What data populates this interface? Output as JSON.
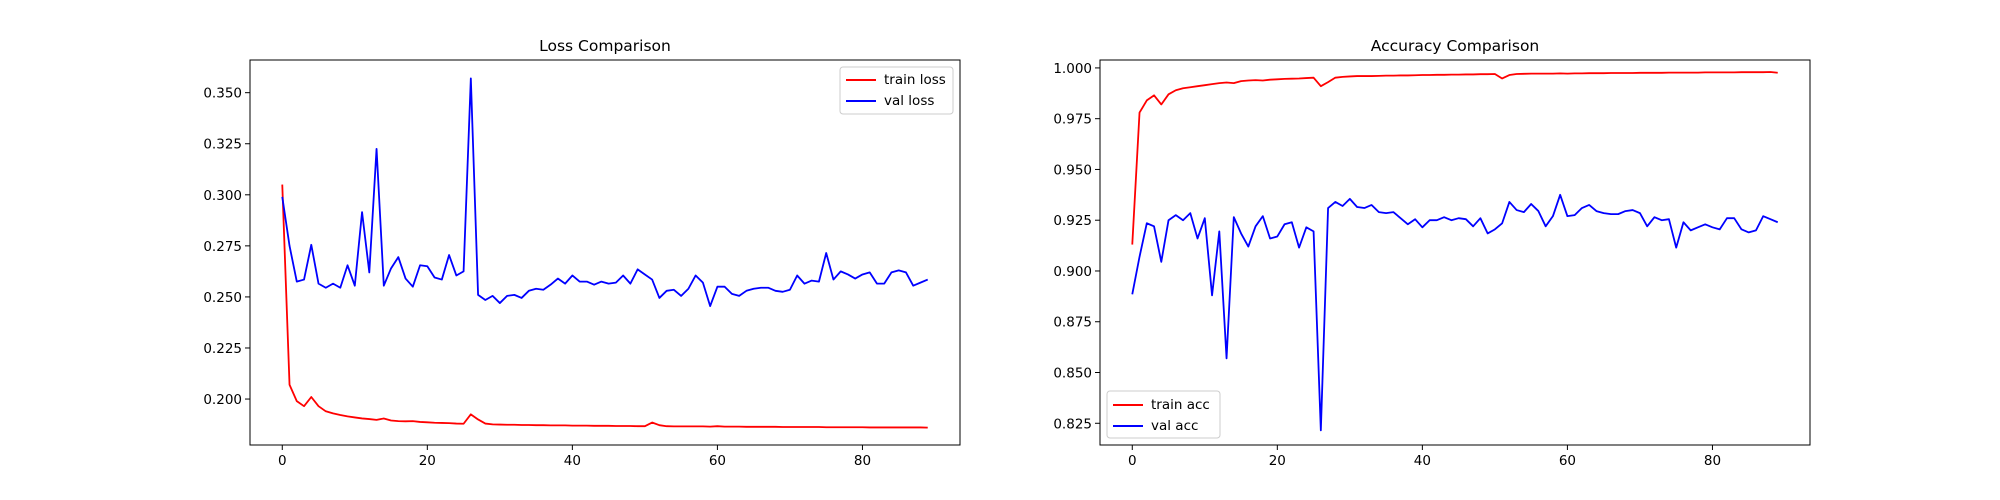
{
  "chart_data": [
    {
      "type": "line",
      "title": "Loss Comparison",
      "xlabel": "",
      "ylabel": "",
      "xlim": [
        -4.45,
        93.45
      ],
      "ylim": [
        0.1775,
        0.366
      ],
      "xticks": [
        0,
        20,
        40,
        60,
        80
      ],
      "yticks": [
        0.2,
        0.225,
        0.25,
        0.275,
        0.3,
        0.325,
        0.35
      ],
      "ytick_labels": [
        "0.200",
        "0.225",
        "0.250",
        "0.275",
        "0.300",
        "0.325",
        "0.350"
      ],
      "grid": false,
      "legend": "top-right",
      "series": [
        {
          "name": "train loss",
          "color": "#ff0000",
          "values": [
            0.305,
            0.207,
            0.199,
            0.1965,
            0.201,
            0.1965,
            0.194,
            0.193,
            0.1922,
            0.1915,
            0.191,
            0.1905,
            0.1902,
            0.1898,
            0.1905,
            0.1895,
            0.1892,
            0.1891,
            0.1892,
            0.1888,
            0.1886,
            0.1884,
            0.1883,
            0.1882,
            0.188,
            0.1879,
            0.1925,
            0.19,
            0.188,
            0.1876,
            0.1875,
            0.1874,
            0.1874,
            0.1873,
            0.1873,
            0.1872,
            0.1872,
            0.1871,
            0.1871,
            0.1871,
            0.187,
            0.187,
            0.187,
            0.1869,
            0.1869,
            0.1869,
            0.1868,
            0.1868,
            0.1868,
            0.1867,
            0.1867,
            0.1885,
            0.1872,
            0.1867,
            0.1866,
            0.1866,
            0.1866,
            0.1866,
            0.1866,
            0.1865,
            0.1867,
            0.1865,
            0.1865,
            0.1865,
            0.1864,
            0.1864,
            0.1864,
            0.1864,
            0.1864,
            0.1863,
            0.1863,
            0.1863,
            0.1863,
            0.1863,
            0.1863,
            0.1862,
            0.1862,
            0.1862,
            0.1862,
            0.1862,
            0.1862,
            0.1861,
            0.1861,
            0.1861,
            0.1861,
            0.1861,
            0.1861,
            0.1861,
            0.1861,
            0.186
          ]
        },
        {
          "name": "val loss",
          "color": "#0000ff",
          "values": [
            0.299,
            0.275,
            0.2575,
            0.2585,
            0.2755,
            0.2565,
            0.2545,
            0.2565,
            0.2545,
            0.2655,
            0.2555,
            0.2915,
            0.262,
            0.3225,
            0.2555,
            0.264,
            0.2695,
            0.259,
            0.255,
            0.2655,
            0.265,
            0.2595,
            0.2585,
            0.2705,
            0.2605,
            0.2625,
            0.357,
            0.251,
            0.2485,
            0.2505,
            0.247,
            0.2505,
            0.251,
            0.2495,
            0.253,
            0.254,
            0.2535,
            0.256,
            0.259,
            0.2565,
            0.2605,
            0.2575,
            0.2575,
            0.256,
            0.2575,
            0.2565,
            0.257,
            0.2605,
            0.2565,
            0.2635,
            0.261,
            0.2585,
            0.2495,
            0.253,
            0.2535,
            0.2505,
            0.254,
            0.2605,
            0.257,
            0.2455,
            0.255,
            0.255,
            0.2515,
            0.2505,
            0.253,
            0.254,
            0.2545,
            0.2545,
            0.253,
            0.2525,
            0.2535,
            0.2605,
            0.2565,
            0.258,
            0.2575,
            0.2715,
            0.2585,
            0.2625,
            0.261,
            0.259,
            0.261,
            0.262,
            0.2565,
            0.2565,
            0.262,
            0.263,
            0.262,
            0.2555,
            0.257,
            0.2585
          ]
        }
      ]
    },
    {
      "type": "line",
      "title": "Accuracy Comparison",
      "xlabel": "",
      "ylabel": "",
      "xlim": [
        -4.45,
        93.45
      ],
      "ylim": [
        0.8143,
        1.0039
      ],
      "xticks": [
        0,
        20,
        40,
        60,
        80
      ],
      "yticks": [
        0.825,
        0.85,
        0.875,
        0.9,
        0.925,
        0.95,
        0.975,
        1.0
      ],
      "ytick_labels": [
        "0.825",
        "0.850",
        "0.875",
        "0.900",
        "0.925",
        "0.950",
        "0.975",
        "1.000"
      ],
      "grid": false,
      "legend": "lower-left",
      "series": [
        {
          "name": "train acc",
          "color": "#ff0000",
          "values": [
            0.913,
            0.978,
            0.984,
            0.9865,
            0.982,
            0.987,
            0.989,
            0.99,
            0.9905,
            0.991,
            0.9915,
            0.992,
            0.9925,
            0.9928,
            0.9925,
            0.9935,
            0.9938,
            0.994,
            0.9938,
            0.9942,
            0.9944,
            0.9946,
            0.9947,
            0.9948,
            0.995,
            0.9952,
            0.991,
            0.993,
            0.9952,
            0.9956,
            0.9958,
            0.996,
            0.996,
            0.996,
            0.9961,
            0.9962,
            0.9962,
            0.9963,
            0.9963,
            0.9964,
            0.9965,
            0.9965,
            0.9966,
            0.9966,
            0.9967,
            0.9967,
            0.9968,
            0.9968,
            0.9969,
            0.9969,
            0.997,
            0.9948,
            0.9965,
            0.997,
            0.9971,
            0.9972,
            0.9972,
            0.9972,
            0.9972,
            0.9973,
            0.9972,
            0.9973,
            0.9973,
            0.9974,
            0.9974,
            0.9974,
            0.9975,
            0.9975,
            0.9975,
            0.9975,
            0.9976,
            0.9976,
            0.9976,
            0.9976,
            0.9977,
            0.9977,
            0.9977,
            0.9977,
            0.9977,
            0.9978,
            0.9978,
            0.9978,
            0.9978,
            0.9978,
            0.9979,
            0.9979,
            0.9979,
            0.9979,
            0.998,
            0.9976
          ]
        },
        {
          "name": "val acc",
          "color": "#0000ff",
          "values": [
            0.8885,
            0.907,
            0.9235,
            0.922,
            0.9045,
            0.925,
            0.9275,
            0.925,
            0.9285,
            0.916,
            0.926,
            0.888,
            0.9195,
            0.857,
            0.9265,
            0.9185,
            0.912,
            0.922,
            0.927,
            0.916,
            0.917,
            0.923,
            0.924,
            0.9115,
            0.9215,
            0.9195,
            0.8215,
            0.931,
            0.934,
            0.932,
            0.9355,
            0.9315,
            0.931,
            0.9325,
            0.929,
            0.9285,
            0.929,
            0.926,
            0.923,
            0.9255,
            0.9215,
            0.925,
            0.925,
            0.9265,
            0.925,
            0.926,
            0.9255,
            0.922,
            0.926,
            0.9185,
            0.9205,
            0.9235,
            0.934,
            0.93,
            0.929,
            0.933,
            0.9295,
            0.922,
            0.927,
            0.9375,
            0.927,
            0.9275,
            0.931,
            0.9325,
            0.9295,
            0.9285,
            0.928,
            0.928,
            0.9295,
            0.93,
            0.9285,
            0.922,
            0.9265,
            0.925,
            0.9255,
            0.9115,
            0.924,
            0.92,
            0.9215,
            0.923,
            0.9215,
            0.9205,
            0.926,
            0.926,
            0.9205,
            0.919,
            0.92,
            0.927,
            0.9255,
            0.924
          ]
        }
      ]
    }
  ]
}
